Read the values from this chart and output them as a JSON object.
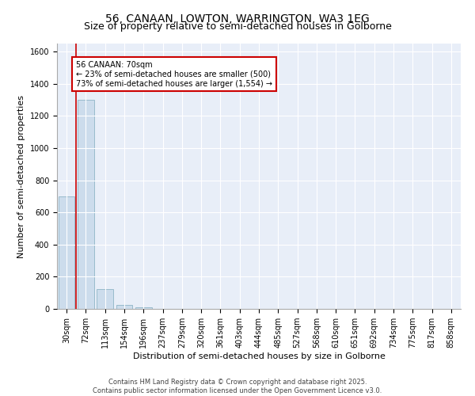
{
  "title": "56, CANAAN, LOWTON, WARRINGTON, WA3 1EG",
  "subtitle": "Size of property relative to semi-detached houses in Golborne",
  "xlabel": "Distribution of semi-detached houses by size in Golborne",
  "ylabel": "Number of semi-detached properties",
  "categories": [
    "30sqm",
    "72sqm",
    "113sqm",
    "154sqm",
    "196sqm",
    "237sqm",
    "279sqm",
    "320sqm",
    "361sqm",
    "403sqm",
    "444sqm",
    "485sqm",
    "527sqm",
    "568sqm",
    "610sqm",
    "651sqm",
    "692sqm",
    "734sqm",
    "775sqm",
    "817sqm",
    "858sqm"
  ],
  "values": [
    700,
    1300,
    125,
    25,
    10,
    0,
    0,
    0,
    0,
    0,
    0,
    0,
    0,
    0,
    0,
    0,
    0,
    0,
    0,
    0,
    0
  ],
  "bar_color": "#ccdcec",
  "bar_edge_color": "#99bbcc",
  "red_line_x": 0.5,
  "annotation_text": "56 CANAAN: 70sqm\n← 23% of semi-detached houses are smaller (500)\n73% of semi-detached houses are larger (1,554) →",
  "annotation_box_facecolor": "white",
  "annotation_box_edge": "#cc0000",
  "background_color": "#e8eef8",
  "ylim": [
    0,
    1650
  ],
  "yticks": [
    0,
    200,
    400,
    600,
    800,
    1000,
    1200,
    1400,
    1600
  ],
  "footer_line1": "Contains HM Land Registry data © Crown copyright and database right 2025.",
  "footer_line2": "Contains public sector information licensed under the Open Government Licence v3.0.",
  "title_fontsize": 10,
  "subtitle_fontsize": 9,
  "axis_label_fontsize": 8,
  "tick_fontsize": 7,
  "annot_fontsize": 7
}
